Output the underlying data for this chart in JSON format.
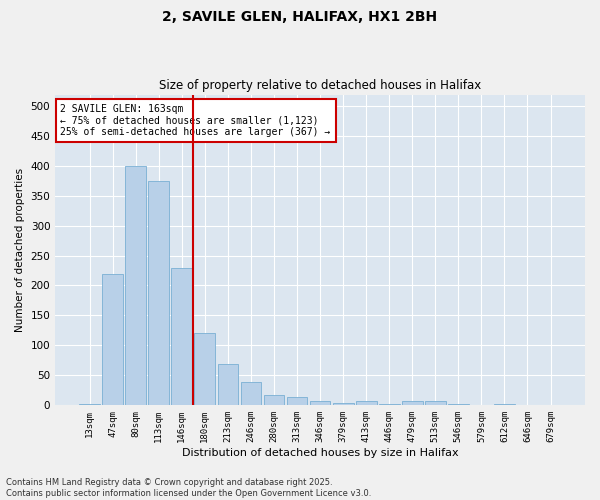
{
  "title_line1": "2, SAVILE GLEN, HALIFAX, HX1 2BH",
  "title_line2": "Size of property relative to detached houses in Halifax",
  "xlabel": "Distribution of detached houses by size in Halifax",
  "ylabel": "Number of detached properties",
  "categories": [
    "13sqm",
    "47sqm",
    "80sqm",
    "113sqm",
    "146sqm",
    "180sqm",
    "213sqm",
    "246sqm",
    "280sqm",
    "313sqm",
    "346sqm",
    "379sqm",
    "413sqm",
    "446sqm",
    "479sqm",
    "513sqm",
    "546sqm",
    "579sqm",
    "612sqm",
    "646sqm",
    "679sqm"
  ],
  "values": [
    2,
    220,
    400,
    375,
    230,
    120,
    68,
    38,
    17,
    13,
    7,
    3,
    6,
    2,
    7,
    7,
    1,
    0,
    1,
    0,
    0
  ],
  "bar_color": "#b8d0e8",
  "bar_edge_color": "#7aafd4",
  "background_color": "#dce6f0",
  "fig_background_color": "#f0f0f0",
  "grid_color": "#ffffff",
  "vline_x_index": 4.5,
  "vline_color": "#cc0000",
  "annotation_text": "2 SAVILE GLEN: 163sqm\n← 75% of detached houses are smaller (1,123)\n25% of semi-detached houses are larger (367) →",
  "annotation_box_color": "#cc0000",
  "footer_line1": "Contains HM Land Registry data © Crown copyright and database right 2025.",
  "footer_line2": "Contains public sector information licensed under the Open Government Licence v3.0.",
  "ylim": [
    0,
    520
  ],
  "yticks": [
    0,
    50,
    100,
    150,
    200,
    250,
    300,
    350,
    400,
    450,
    500
  ]
}
